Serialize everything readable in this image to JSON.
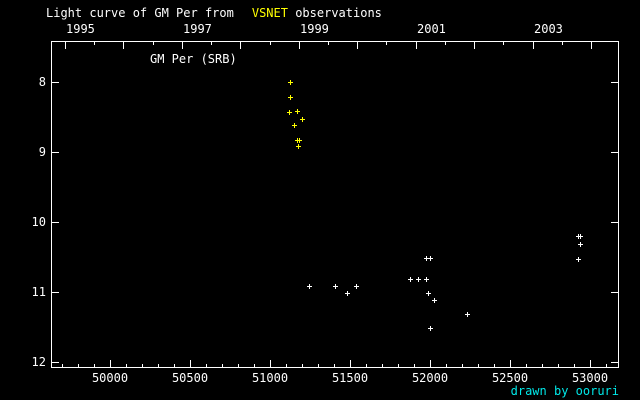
{
  "title": {
    "prefix": "Light curve of GM Per from",
    "highlight": "VSNET",
    "suffix": " observations"
  },
  "plot_label": "GM Per (SRB)",
  "credit": "drawn by ooruri",
  "colors": {
    "background": "#000000",
    "foreground": "#ffffff",
    "highlight": "#ffff00",
    "credit": "#00e8e8"
  },
  "chart_data": {
    "type": "scatter",
    "title": "Light curve of GM Per from VSNET observations",
    "object_label": "GM Per (SRB)",
    "marker": "plus",
    "grid": false,
    "legend": false,
    "x_axis": {
      "range": [
        49631,
        53181
      ],
      "major_ticks": [
        50000,
        50500,
        51000,
        51500,
        52000,
        52500,
        53000
      ],
      "tick_labels": [
        "50000",
        "50500",
        "51000",
        "51500",
        "52000",
        "52500",
        "53000"
      ],
      "minor_tick_step": 100,
      "minor_tick_start": 49700,
      "minor_tick_end": 53100
    },
    "top_axis": {
      "unit": "year",
      "ticks": [
        {
          "jd": 49718.5,
          "major": true,
          "label": "1995"
        },
        {
          "jd": 49901.1,
          "major": false
        },
        {
          "jd": 50083.75,
          "major": true
        },
        {
          "jd": 50266.4,
          "major": false
        },
        {
          "jd": 50449.0,
          "major": true,
          "label": "1997"
        },
        {
          "jd": 50631.6,
          "major": false
        },
        {
          "jd": 50814.25,
          "major": true
        },
        {
          "jd": 50996.9,
          "major": false
        },
        {
          "jd": 51179.5,
          "major": true,
          "label": "1999"
        },
        {
          "jd": 51362.1,
          "major": false
        },
        {
          "jd": 51544.75,
          "major": true
        },
        {
          "jd": 51727.4,
          "major": false
        },
        {
          "jd": 51910.0,
          "major": true,
          "label": "2001"
        },
        {
          "jd": 52092.6,
          "major": false
        },
        {
          "jd": 52275.25,
          "major": true
        },
        {
          "jd": 52457.9,
          "major": false
        },
        {
          "jd": 52640.5,
          "major": true,
          "label": "2003"
        },
        {
          "jd": 52823.1,
          "major": false
        },
        {
          "jd": 53005.75,
          "major": true
        }
      ]
    },
    "y_axis": {
      "range": [
        7.41,
        12.09
      ],
      "inverted": true,
      "unit": "magnitude",
      "major_ticks": [
        8,
        9,
        10,
        11,
        12
      ],
      "tick_labels": [
        "8",
        "9",
        "10",
        "11",
        "12"
      ]
    },
    "series": [
      {
        "name": "outburst-observations-yellow",
        "color": "#ffff00",
        "points": [
          [
            51125,
            8.0
          ],
          [
            51125,
            8.21
          ],
          [
            51119,
            8.42
          ],
          [
            51169,
            8.41
          ],
          [
            51200,
            8.52
          ],
          [
            51150,
            8.61
          ],
          [
            51167,
            8.82
          ],
          [
            51183,
            8.82
          ],
          [
            51177,
            8.91
          ]
        ]
      },
      {
        "name": "quiescence-observations-white",
        "color": "#ffffff",
        "points": [
          [
            51244,
            10.92
          ],
          [
            51406,
            10.92
          ],
          [
            51481,
            11.02
          ],
          [
            51538,
            10.91
          ],
          [
            51875,
            10.82
          ],
          [
            51925,
            10.82
          ],
          [
            51975,
            10.82
          ],
          [
            51975,
            10.52
          ],
          [
            52000,
            10.52
          ],
          [
            51988,
            11.02
          ],
          [
            52025,
            11.12
          ],
          [
            52000,
            11.52
          ],
          [
            52231,
            11.32
          ],
          [
            52925,
            10.2
          ],
          [
            52938,
            10.2
          ],
          [
            52938,
            10.32
          ],
          [
            52925,
            10.53
          ]
        ]
      }
    ]
  }
}
